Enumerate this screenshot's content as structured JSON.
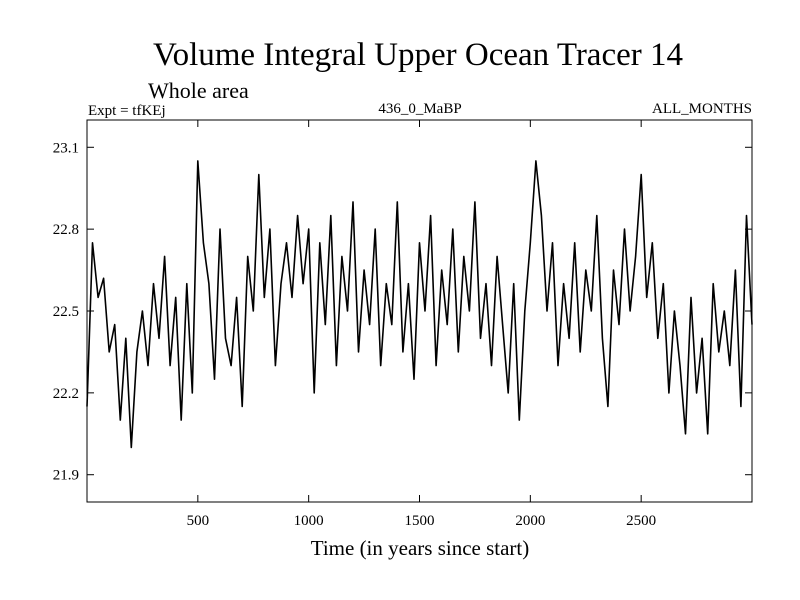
{
  "chart_data": {
    "type": "line",
    "title": "Volume Integral Upper Ocean Tracer 14",
    "subtitle": "Whole area",
    "left_label": "Expt = tfKEj",
    "center_label": "436_0_MaBP",
    "right_label": "ALL_MONTHS",
    "xlabel": "Time (in years since start)",
    "ylabel": "",
    "xlim": [
      0,
      3000
    ],
    "ylim": [
      21.8,
      23.2
    ],
    "xticks": [
      500,
      1000,
      1500,
      2000,
      2500
    ],
    "xtick_labels": [
      "500",
      "1000",
      "1500",
      "2000",
      "2500"
    ],
    "yticks": [
      21.9,
      22.2,
      22.5,
      22.8,
      23.1
    ],
    "ytick_labels": [
      "21.9",
      "22.2",
      "22.5",
      "22.8",
      "23.1"
    ],
    "grid": false,
    "line_color": "#000000",
    "series": [
      {
        "x": [
          0,
          25,
          50,
          75,
          100,
          125,
          150,
          175,
          200,
          225,
          250,
          275,
          300,
          325,
          350,
          375,
          400,
          425,
          450,
          475,
          500,
          525,
          550,
          575,
          600,
          625,
          650,
          675,
          700,
          725,
          750,
          775,
          800,
          825,
          850,
          875,
          900,
          925,
          950,
          975,
          1000,
          1025,
          1050,
          1075,
          1100,
          1125,
          1150,
          1175,
          1200,
          1225,
          1250,
          1275,
          1300,
          1325,
          1350,
          1375,
          1400,
          1425,
          1450,
          1475,
          1500,
          1525,
          1550,
          1575,
          1600,
          1625,
          1650,
          1675,
          1700,
          1725,
          1750,
          1775,
          1800,
          1825,
          1850,
          1875,
          1900,
          1925,
          1950,
          1975,
          2000,
          2025,
          2050,
          2075,
          2100,
          2125,
          2150,
          2175,
          2200,
          2225,
          2250,
          2275,
          2300,
          2325,
          2350,
          2375,
          2400,
          2425,
          2450,
          2475,
          2500,
          2525,
          2550,
          2575,
          2600,
          2625,
          2650,
          2675,
          2700,
          2725,
          2750,
          2775,
          2800,
          2825,
          2850,
          2875,
          2900,
          2925,
          2950,
          2975,
          3000
        ],
        "values": [
          22.15,
          22.75,
          22.55,
          22.62,
          22.35,
          22.45,
          22.1,
          22.4,
          22.0,
          22.35,
          22.5,
          22.3,
          22.6,
          22.4,
          22.7,
          22.3,
          22.55,
          22.1,
          22.6,
          22.2,
          23.05,
          22.75,
          22.6,
          22.25,
          22.8,
          22.4,
          22.3,
          22.55,
          22.15,
          22.7,
          22.5,
          23.0,
          22.55,
          22.8,
          22.3,
          22.6,
          22.75,
          22.55,
          22.85,
          22.6,
          22.8,
          22.2,
          22.75,
          22.45,
          22.85,
          22.3,
          22.7,
          22.5,
          22.9,
          22.35,
          22.65,
          22.45,
          22.8,
          22.3,
          22.6,
          22.45,
          22.9,
          22.35,
          22.6,
          22.25,
          22.75,
          22.5,
          22.85,
          22.3,
          22.65,
          22.45,
          22.8,
          22.35,
          22.7,
          22.5,
          22.9,
          22.4,
          22.6,
          22.3,
          22.7,
          22.45,
          22.2,
          22.6,
          22.1,
          22.5,
          22.75,
          23.05,
          22.85,
          22.5,
          22.75,
          22.3,
          22.6,
          22.4,
          22.75,
          22.35,
          22.65,
          22.5,
          22.85,
          22.4,
          22.15,
          22.65,
          22.45,
          22.8,
          22.5,
          22.7,
          23.0,
          22.55,
          22.75,
          22.4,
          22.6,
          22.2,
          22.5,
          22.3,
          22.05,
          22.55,
          22.2,
          22.4,
          22.05,
          22.6,
          22.35,
          22.5,
          22.3,
          22.65,
          22.15,
          22.85,
          22.45
        ]
      }
    ]
  }
}
